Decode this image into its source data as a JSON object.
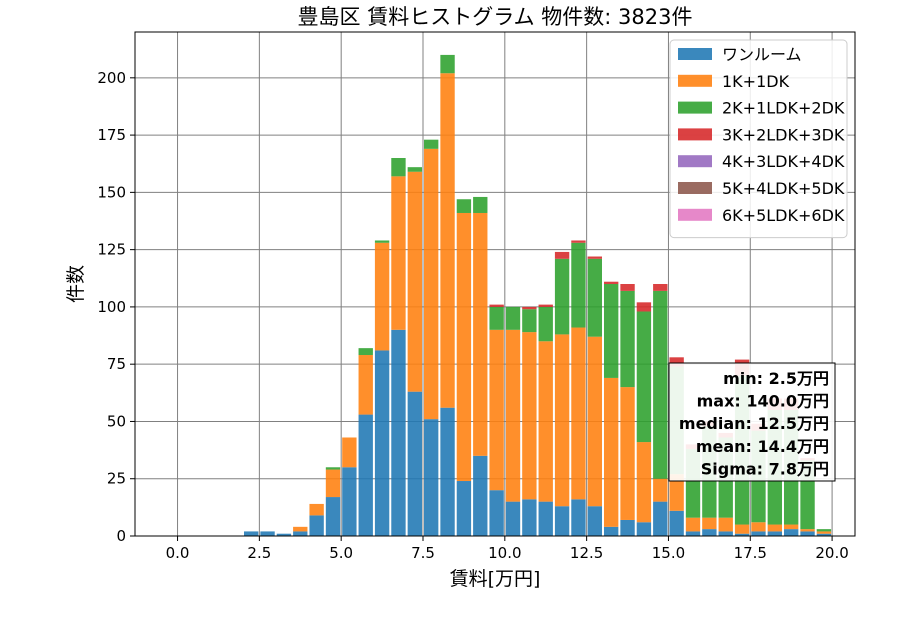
{
  "chart_data": {
    "type": "bar",
    "stacked": true,
    "title": "豊島区 賃料ヒストグラム 物件数: 3823件",
    "xlabel": "賃料[万円]",
    "ylabel": "件数",
    "xlim": [
      -1.3,
      20.7
    ],
    "ylim": [
      0,
      220
    ],
    "xticks": [
      0,
      2.5,
      5,
      7.5,
      10,
      12.5,
      15,
      17.5,
      20
    ],
    "xtick_labels": [
      "0.0",
      "2.5",
      "5.0",
      "7.5",
      "10.0",
      "12.5",
      "15.0",
      "17.5",
      "20.0"
    ],
    "yticks": [
      0,
      25,
      50,
      75,
      100,
      125,
      150,
      175,
      200
    ],
    "ytick_labels": [
      "0",
      "25",
      "50",
      "75",
      "100",
      "125",
      "150",
      "175",
      "200"
    ],
    "grid": true,
    "legend_position": "top-right",
    "bin_width": 0.5,
    "bin_starts": [
      2.0,
      2.5,
      3.0,
      3.5,
      4.0,
      4.5,
      5.0,
      5.5,
      6.0,
      6.5,
      7.0,
      7.5,
      8.0,
      8.5,
      9.0,
      9.5,
      10.0,
      10.5,
      11.0,
      11.5,
      12.0,
      12.5,
      13.0,
      13.5,
      14.0,
      14.5,
      15.0,
      15.5,
      16.0,
      16.5,
      17.0,
      17.5,
      18.0,
      18.5,
      19.0,
      19.5
    ],
    "series": [
      {
        "name": "ワンルーム",
        "color": "#1f77b4",
        "values": [
          2,
          2,
          1,
          2,
          9,
          17,
          30,
          53,
          81,
          90,
          63,
          51,
          56,
          24,
          35,
          20,
          15,
          16,
          15,
          13,
          16,
          13,
          4,
          7,
          6,
          15,
          11,
          2,
          3,
          2,
          1,
          2,
          2,
          3,
          2,
          1
        ]
      },
      {
        "name": "1K+1DK",
        "color": "#ff7f0e",
        "values": [
          0,
          0,
          0,
          2,
          5,
          12,
          13,
          26,
          47,
          67,
          96,
          118,
          146,
          117,
          106,
          70,
          75,
          73,
          70,
          75,
          75,
          74,
          65,
          58,
          35,
          10,
          16,
          6,
          5,
          6,
          4,
          4,
          3,
          2,
          1,
          1
        ]
      },
      {
        "name": "2K+1LDK+2DK",
        "color": "#2ca02c",
        "values": [
          0,
          0,
          0,
          0,
          0,
          1,
          0,
          3,
          1,
          8,
          2,
          4,
          8,
          6,
          7,
          10,
          10,
          10,
          15,
          33,
          37,
          34,
          41,
          42,
          57,
          82,
          47,
          30,
          40,
          35,
          65,
          40,
          50,
          50,
          30,
          1
        ]
      },
      {
        "name": "3K+2LDK+3DK",
        "color": "#d62728",
        "values": [
          0,
          0,
          0,
          0,
          0,
          0,
          0,
          0,
          0,
          0,
          0,
          0,
          0,
          0,
          0,
          1,
          0,
          1,
          1,
          3,
          1,
          1,
          1,
          3,
          4,
          3,
          4,
          2,
          2,
          2,
          7,
          3,
          5,
          5,
          1,
          0
        ]
      },
      {
        "name": "4K+3LDK+4DK",
        "color": "#9467bd",
        "values": [
          0,
          0,
          0,
          0,
          0,
          0,
          0,
          0,
          0,
          0,
          0,
          0,
          0,
          0,
          0,
          0,
          0,
          0,
          0,
          0,
          0,
          0,
          0,
          0,
          0,
          0,
          0,
          0,
          0,
          0,
          0,
          0,
          0,
          0,
          0,
          0
        ]
      },
      {
        "name": "5K+4LDK+5DK",
        "color": "#8c564b",
        "values": [
          0,
          0,
          0,
          0,
          0,
          0,
          0,
          0,
          0,
          0,
          0,
          0,
          0,
          0,
          0,
          0,
          0,
          0,
          0,
          0,
          0,
          0,
          0,
          0,
          0,
          0,
          0,
          0,
          0,
          0,
          0,
          0,
          0,
          0,
          0,
          0
        ]
      },
      {
        "name": "6K+5LDK+6DK",
        "color": "#e377c2",
        "values": [
          0,
          0,
          0,
          0,
          0,
          0,
          0,
          0,
          0,
          0,
          0,
          0,
          0,
          0,
          0,
          0,
          0,
          0,
          0,
          0,
          0,
          0,
          0,
          0,
          0,
          0,
          0,
          0,
          0,
          0,
          0,
          0,
          0,
          0,
          0,
          0
        ]
      }
    ],
    "annotations": [
      "min: 2.5万円",
      "max: 140.0万円",
      "median: 12.5万円",
      "mean: 14.4万円",
      "Sigma: 7.8万円"
    ]
  }
}
